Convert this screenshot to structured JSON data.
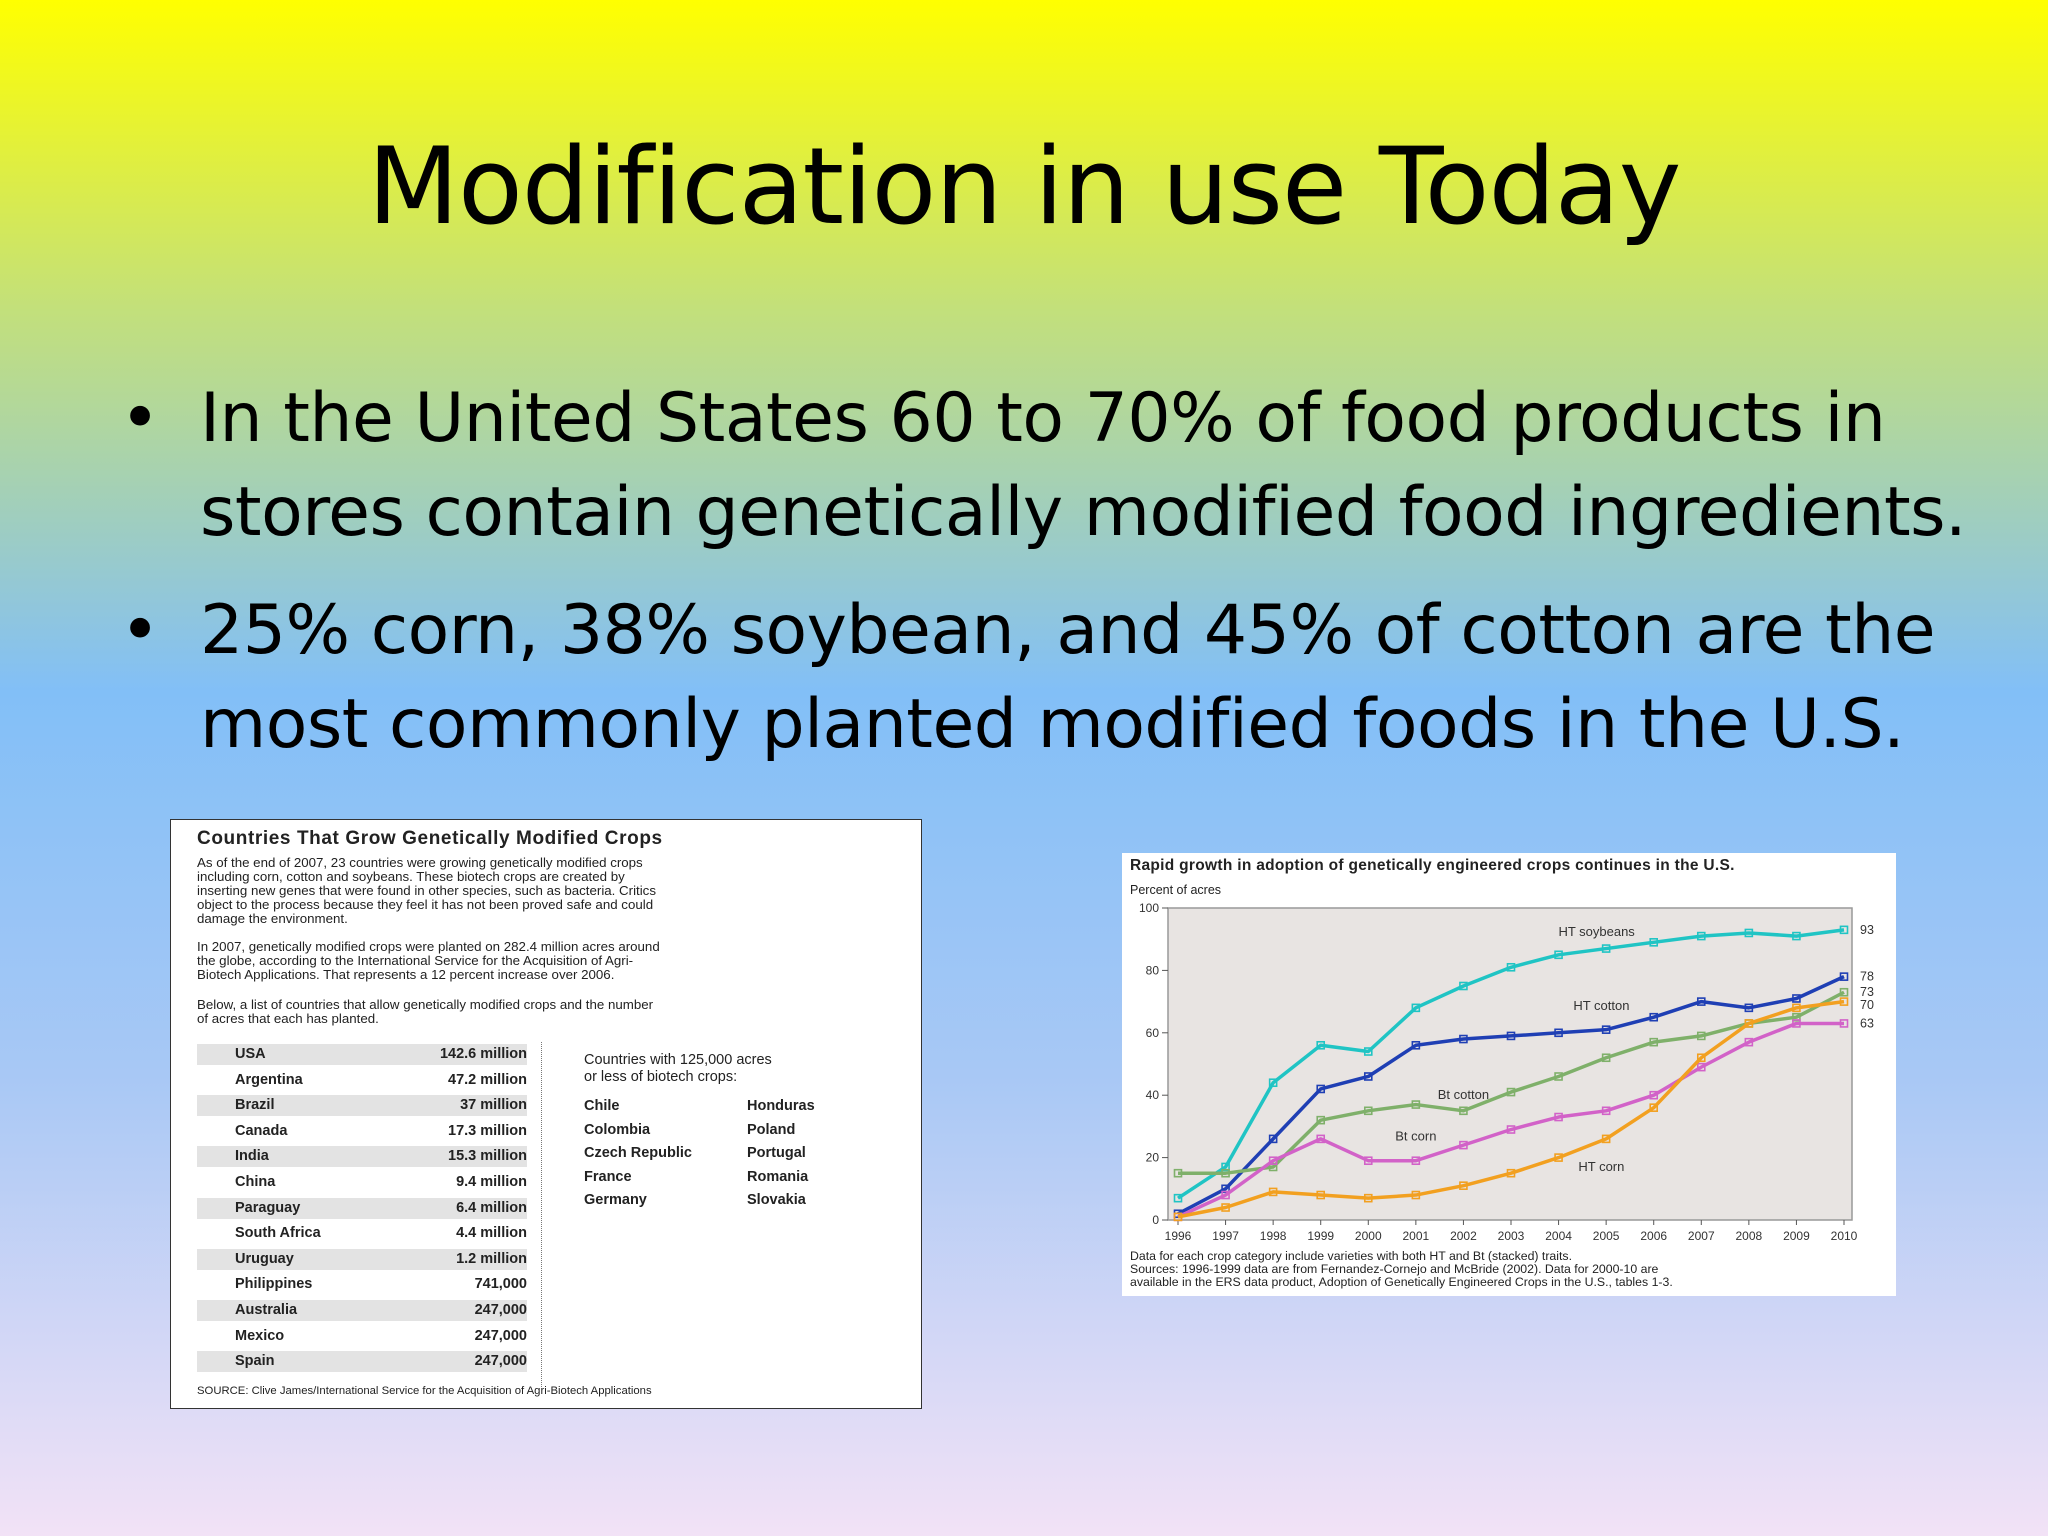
{
  "slide": {
    "title": "Modification in use Today",
    "bullets": [
      {
        "symbol": "•",
        "line1": "In the United States 60 to 70% of food products in",
        "line2": "stores contain genetically modified food ingredients."
      },
      {
        "symbol": "•",
        "line1": "25% corn, 38% soybean, and 45% of cotton are the",
        "line2": "most commonly planted modified foods in the U.S."
      }
    ]
  },
  "left_figure": {
    "title": "Countries That Grow Genetically Modified Crops",
    "para1": [
      "As of the end of 2007, 23 countries were growing genetically modified crops",
      "including corn, cotton and soybeans. These biotech crops are created by",
      "inserting new genes that were found in other species, such as bacteria. Critics",
      "object to the process because they feel it has not been proved safe and could",
      "damage the environment."
    ],
    "para2": [
      "In 2007, genetically modified crops were planted on 282.4 million acres around",
      "the globe, according to the International Service for the Acquisition of Agri-",
      "Biotech Applications. That represents a 12 percent increase over 2006."
    ],
    "para3": [
      "Below, a list of countries that allow genetically modified crops and the number",
      "of acres that each has planted."
    ],
    "rows": [
      {
        "country": "USA",
        "acres": "142.6 million"
      },
      {
        "country": "Argentina",
        "acres": "47.2 million"
      },
      {
        "country": "Brazil",
        "acres": "37 million"
      },
      {
        "country": "Canada",
        "acres": "17.3 million"
      },
      {
        "country": "India",
        "acres": "15.3 million"
      },
      {
        "country": "China",
        "acres": "9.4 million"
      },
      {
        "country": "Paraguay",
        "acres": "6.4 million"
      },
      {
        "country": "South Africa",
        "acres": "4.4 million"
      },
      {
        "country": "Uruguay",
        "acres": "1.2 million"
      },
      {
        "country": "Philippines",
        "acres": "741,000"
      },
      {
        "country": "Australia",
        "acres": "247,000"
      },
      {
        "country": "Mexico",
        "acres": "247,000"
      },
      {
        "country": "Spain",
        "acres": "247,000"
      }
    ],
    "small_heading": [
      "Countries with 125,000 acres",
      "or less of biotech crops:"
    ],
    "small_col1": [
      "Chile",
      "Colombia",
      "Czech Republic",
      "France",
      "Germany"
    ],
    "small_col2": [
      "Honduras",
      "Poland",
      "Portugal",
      "Romania",
      "Slovakia"
    ],
    "source": "SOURCE: Clive James/International Service for the Acquisition of Agri-Biotech Applications"
  },
  "chart_data": {
    "type": "line",
    "title": "Rapid growth in adoption of genetically engineered crops continues in the U.S.",
    "ylabel": "Percent of acres",
    "xlabel": "",
    "x": [
      "1996",
      "1997",
      "1998",
      "1999",
      "2000",
      "2001",
      "2002",
      "2003",
      "2004",
      "2005",
      "2006",
      "2007",
      "2008",
      "2009",
      "2010"
    ],
    "ylim": [
      0,
      100
    ],
    "yticks": [
      0,
      20,
      40,
      60,
      80,
      100
    ],
    "grid": false,
    "series": [
      {
        "name": "HT soybeans",
        "color": "#20c4c4",
        "values": [
          7,
          17,
          44,
          56,
          54,
          68,
          75,
          81,
          85,
          87,
          89,
          91,
          92,
          91,
          93
        ],
        "end_label": "93"
      },
      {
        "name": "HT cotton",
        "color": "#1f3fb4",
        "values": [
          2,
          10,
          26,
          42,
          46,
          56,
          58,
          59,
          60,
          61,
          65,
          70,
          68,
          71,
          78
        ],
        "end_label": "78"
      },
      {
        "name": "Bt cotton",
        "color": "#7fb06a",
        "values": [
          15,
          15,
          17,
          32,
          35,
          37,
          35,
          41,
          46,
          52,
          57,
          59,
          63,
          65,
          73
        ],
        "end_label": "73"
      },
      {
        "name": "Bt corn",
        "color": "#d262c8",
        "values": [
          1,
          8,
          19,
          26,
          19,
          19,
          24,
          29,
          33,
          35,
          40,
          49,
          57,
          63,
          63
        ],
        "end_label": "63"
      },
      {
        "name": "HT corn",
        "color": "#f2a020",
        "values": [
          1,
          4,
          9,
          8,
          7,
          8,
          11,
          15,
          20,
          26,
          36,
          52,
          63,
          68,
          70
        ],
        "end_label": "70"
      }
    ],
    "notes": [
      "Data for each crop category include varieties with both HT and Bt (stacked) traits.",
      "Sources: 1996-1999 data are from Fernandez-Cornejo and McBride (2002). Data for 2000-10 are",
      "available in the ERS data product, Adoption of Genetically Engineered Crops in the U.S., tables 1-3."
    ]
  }
}
